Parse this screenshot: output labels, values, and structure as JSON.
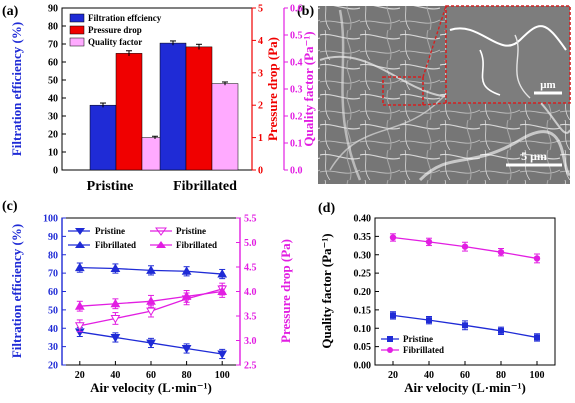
{
  "panels": {
    "a": "(a)",
    "b": "(b)",
    "c": "(c)",
    "d": "(d)"
  },
  "sem": {
    "scale_main": "5 μm",
    "scale_inset": "μm"
  },
  "colors": {
    "blue": "#1f2bd6",
    "red": "#f00000",
    "pink": "#ff5cff",
    "magenta": "#e21ee2",
    "light_pink": "#ffaaff",
    "inset_border": "#d42020"
  },
  "chart_data": [
    {
      "id": "a",
      "type": "bar",
      "categories": [
        "Pristine",
        "Fibrillated"
      ],
      "series": [
        {
          "name": "Filtration effciency",
          "axis": "left",
          "values": [
            36,
            70.5
          ],
          "errors": [
            1.2,
            1.2
          ]
        },
        {
          "name": "Pressure drop",
          "axis": "right1",
          "values": [
            3.6,
            3.8
          ],
          "errors": [
            0.08,
            0.08
          ]
        },
        {
          "name": "Quality factor",
          "axis": "right2",
          "values": [
            0.12,
            0.32
          ],
          "errors": [
            0.005,
            0.006
          ]
        }
      ],
      "ylabel": "Filtration efficiency (%)",
      "ylim": [
        0,
        90
      ],
      "yticks": [
        "0",
        "10",
        "20",
        "30",
        "40",
        "50",
        "60",
        "70",
        "80",
        "90"
      ],
      "y2label": "Pressure drop (Pa)",
      "y2lim": [
        0,
        5
      ],
      "y2ticks": [
        "0",
        "1",
        "2",
        "3",
        "4",
        "5"
      ],
      "y3label": "Quality factor (Pa⁻¹)",
      "y3lim": [
        0,
        0.6
      ],
      "y3ticks": [
        "0.0",
        "0.1",
        "0.2",
        "0.3",
        "0.4",
        "0.5",
        "0.6"
      ],
      "legend": "top-left"
    },
    {
      "id": "c",
      "type": "line",
      "x": [
        20,
        40,
        60,
        80,
        100
      ],
      "xticks": [
        "20",
        "40",
        "60",
        "80",
        "100"
      ],
      "xlim": [
        10,
        110
      ],
      "xlabel": "Air velocity (L·min⁻¹)",
      "ylabel": "Filtration efficiency (%)",
      "ylim": [
        20,
        100
      ],
      "yticks": [
        "20",
        "30",
        "40",
        "50",
        "60",
        "70",
        "80",
        "90",
        "100"
      ],
      "y2label": "Pressure drop (Pa)",
      "y2lim": [
        2.5,
        5.5
      ],
      "y2ticks": [
        "2.5",
        "3.0",
        "3.5",
        "4.0",
        "4.5",
        "5.0",
        "5.5"
      ],
      "series": [
        {
          "name": "Pristine",
          "axis": "left",
          "marker": "tri-down",
          "values": [
            38,
            35,
            32,
            29,
            26
          ],
          "errors": [
            2.5,
            2.5,
            2.5,
            2.5,
            2.5
          ]
        },
        {
          "name": "Fibrillated",
          "axis": "left",
          "marker": "tri-up",
          "values": [
            73,
            72.5,
            71.5,
            71,
            69.5
          ],
          "errors": [
            2.5,
            2.5,
            2.5,
            2.5,
            2.5
          ]
        },
        {
          "name": "Pristine",
          "axis": "right",
          "marker": "tri-down-open",
          "values": [
            3.3,
            3.45,
            3.6,
            3.85,
            4.05
          ],
          "errors": [
            0.12,
            0.12,
            0.12,
            0.12,
            0.12
          ]
        },
        {
          "name": "Fibrillated",
          "axis": "right",
          "marker": "tri-up",
          "values": [
            3.7,
            3.75,
            3.8,
            3.9,
            4.0
          ],
          "errors": [
            0.1,
            0.1,
            0.12,
            0.12,
            0.12
          ]
        }
      ],
      "legend": "top-left"
    },
    {
      "id": "d",
      "type": "line",
      "x": [
        20,
        40,
        60,
        80,
        100
      ],
      "xticks": [
        "20",
        "40",
        "60",
        "80",
        "100"
      ],
      "xlim": [
        10,
        110
      ],
      "xlabel": "Air velocity (L·min⁻¹)",
      "ylabel": "Quality factor (Pa⁻¹)",
      "ylim": [
        0,
        0.4
      ],
      "yticks": [
        "0.00",
        "0.05",
        "0.10",
        "0.15",
        "0.20",
        "0.25",
        "0.30",
        "0.35",
        "0.40"
      ],
      "series": [
        {
          "name": "Pristine",
          "marker": "square",
          "values": [
            0.135,
            0.122,
            0.108,
            0.093,
            0.075
          ],
          "errors": [
            0.01,
            0.01,
            0.012,
            0.01,
            0.01
          ]
        },
        {
          "name": "Fibrillated",
          "marker": "circle",
          "values": [
            0.347,
            0.335,
            0.322,
            0.307,
            0.29
          ],
          "errors": [
            0.01,
            0.01,
            0.012,
            0.01,
            0.012
          ]
        }
      ],
      "legend": "bottom-left"
    }
  ]
}
